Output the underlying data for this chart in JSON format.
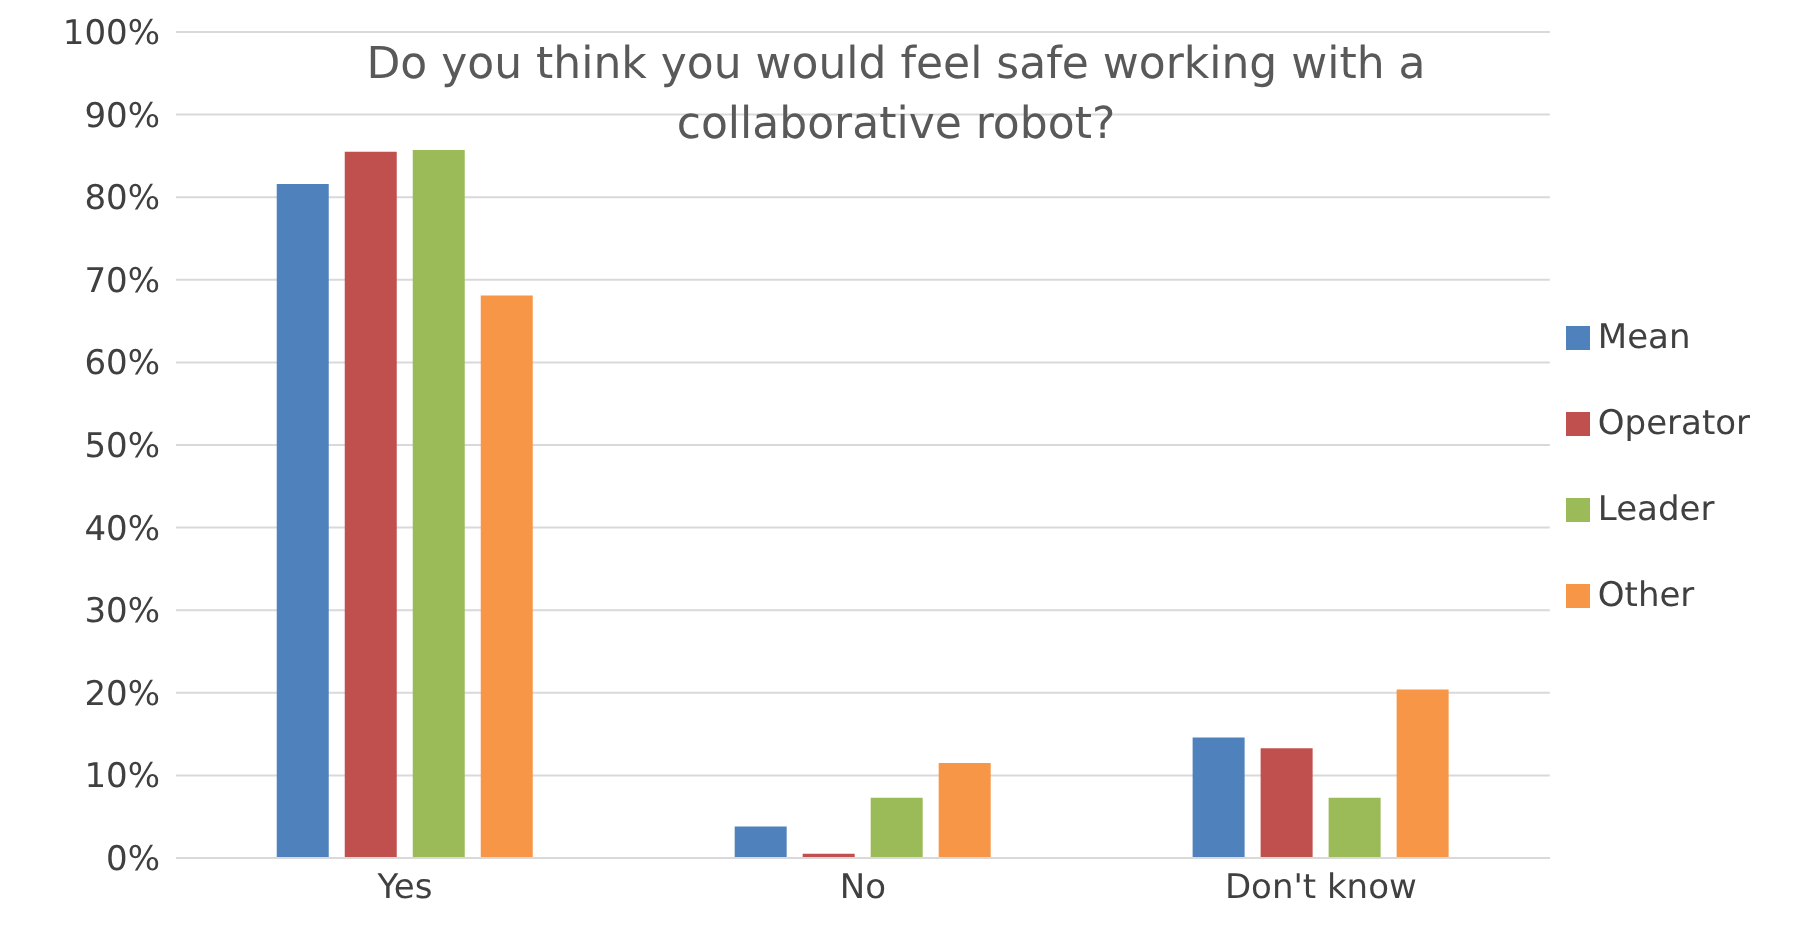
{
  "chart_data": {
    "type": "bar",
    "title": "Do you think you would feel safe working with a collaborative robot?",
    "categories": [
      "Yes",
      "No",
      "Don't know"
    ],
    "series": [
      {
        "name": "Mean",
        "color": "#4f81bd",
        "values": [
          81.6,
          3.8,
          14.6
        ]
      },
      {
        "name": "Operator",
        "color": "#c0504d",
        "values": [
          85.5,
          0.5,
          13.3
        ]
      },
      {
        "name": "Leader",
        "color": "#9bbb59",
        "values": [
          85.7,
          7.3,
          7.3
        ]
      },
      {
        "name": "Other",
        "color": "#f79646",
        "values": [
          68.1,
          11.5,
          20.4
        ]
      }
    ],
    "ylim": [
      0,
      100
    ],
    "yticks": [
      {
        "value": 0,
        "label": "0%"
      },
      {
        "value": 10,
        "label": "10%"
      },
      {
        "value": 20,
        "label": "20%"
      },
      {
        "value": 30,
        "label": "30%"
      },
      {
        "value": 40,
        "label": "40%"
      },
      {
        "value": 50,
        "label": "50%"
      },
      {
        "value": 60,
        "label": "60%"
      },
      {
        "value": 70,
        "label": "70%"
      },
      {
        "value": 80,
        "label": "80%"
      },
      {
        "value": 90,
        "label": "90%"
      },
      {
        "value": 100,
        "label": "100%"
      }
    ],
    "grid": "y",
    "legend": "right"
  }
}
